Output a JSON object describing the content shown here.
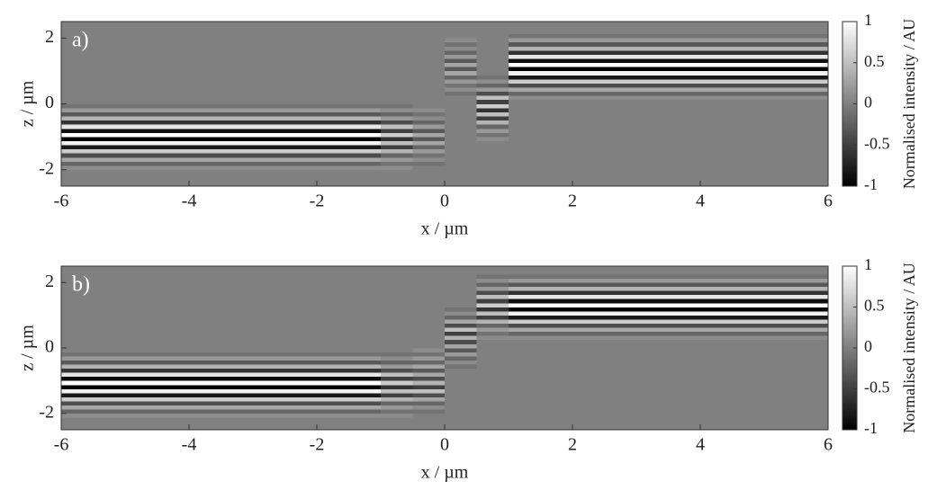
{
  "chart_data": [
    {
      "type": "heatmap",
      "panel_label": "a)",
      "xlabel": "x / µm",
      "ylabel": "z / µm",
      "colorbar_label": "Normalised intensity / AU",
      "xlim": [
        -6,
        6
      ],
      "xticks": [
        -6,
        -4,
        -2,
        0,
        2,
        4,
        6
      ],
      "ylim": [
        -2.5,
        2.5
      ],
      "yticks": [
        -2,
        0,
        2
      ],
      "clim": [
        -1,
        1
      ],
      "colorbar_ticks": [
        -1,
        -0.5,
        0,
        0.5,
        1
      ],
      "x_edges": [
        -6,
        -1,
        -0.5,
        0,
        0.5,
        1,
        6
      ],
      "z_edges": [
        -2.5,
        -2.375,
        -2.25,
        -2.125,
        -2,
        -1.875,
        -1.75,
        -1.625,
        -1.5,
        -1.375,
        -1.25,
        -1.125,
        -1,
        -0.875,
        -0.75,
        -0.625,
        -0.5,
        -0.375,
        -0.25,
        -0.125,
        0,
        0.125,
        0.25,
        0.375,
        0.5,
        0.625,
        0.75,
        0.875,
        1,
        1.125,
        1.25,
        1.375,
        1.5,
        1.625,
        1.75,
        1.875,
        2,
        2.125,
        2.25,
        2.375,
        2.5
      ],
      "values": [
        [
          0,
          0,
          0,
          0,
          0.1,
          -0.2,
          0.3,
          -0.4,
          0.6,
          -0.8,
          0.9,
          -1,
          1,
          -0.9,
          0.8,
          -0.6,
          0.4,
          -0.3,
          0.2,
          -0.1,
          0,
          0,
          0,
          0,
          0,
          0,
          0,
          0,
          0,
          0,
          0,
          0,
          0,
          0,
          0,
          0,
          0,
          0,
          0,
          0
        ],
        [
          0,
          0,
          0,
          0,
          0.1,
          -0.1,
          0.2,
          -0.2,
          0.4,
          -0.5,
          0.5,
          -0.6,
          0.6,
          -0.5,
          0.5,
          -0.4,
          0.2,
          -0.2,
          0.1,
          -0.1,
          0,
          0,
          0,
          0,
          0,
          0,
          0,
          0,
          0,
          0,
          0,
          0,
          0,
          0,
          0,
          0,
          0,
          0,
          0,
          0
        ],
        [
          0,
          0,
          0,
          0,
          0,
          -0.1,
          0.1,
          -0.1,
          0.2,
          -0.2,
          0.3,
          -0.3,
          0.3,
          -0.3,
          0.2,
          -0.2,
          0.1,
          -0.1,
          0.1,
          0,
          0,
          0,
          0,
          0,
          0,
          0,
          0,
          0,
          0,
          0,
          0,
          0,
          0,
          0,
          0,
          0,
          0,
          0,
          0,
          0
        ],
        [
          0,
          0,
          0,
          0,
          0,
          0,
          0,
          0,
          0,
          0,
          0,
          0,
          0,
          0,
          0,
          0,
          0,
          0,
          0,
          0,
          0,
          0,
          -0.1,
          0.1,
          -0.1,
          0.2,
          -0.2,
          0.3,
          -0.3,
          0.3,
          -0.3,
          0.2,
          -0.2,
          0.1,
          -0.1,
          0.1,
          0,
          0,
          0,
          0
        ],
        [
          0,
          0,
          0,
          0,
          0,
          0,
          0,
          0,
          0,
          0,
          0,
          0.1,
          -0.1,
          0.2,
          -0.2,
          0.4,
          -0.5,
          0.5,
          -0.6,
          0.6,
          -0.5,
          0.5,
          -0.4,
          0.2,
          -0.2,
          0.1,
          -0.1,
          0,
          0,
          0,
          0,
          0,
          0,
          0,
          0,
          0,
          0,
          0,
          0,
          0
        ],
        [
          0,
          0,
          0,
          0,
          0,
          0,
          0,
          0,
          0,
          0,
          0,
          0,
          0,
          0,
          0,
          0,
          0,
          0,
          0,
          0,
          0,
          0.1,
          -0.2,
          0.3,
          -0.4,
          0.6,
          -0.8,
          0.9,
          -1,
          1,
          -0.9,
          0.8,
          -0.6,
          0.4,
          -0.3,
          0.2,
          -0.1,
          0,
          0,
          0
        ]
      ]
    },
    {
      "type": "heatmap",
      "panel_label": "b)",
      "xlabel": "x / µm",
      "ylabel": "z / µm",
      "colorbar_label": "Normalised intensity / AU",
      "xlim": [
        -6,
        6
      ],
      "xticks": [
        -6,
        -4,
        -2,
        0,
        2,
        4,
        6
      ],
      "ylim": [
        -2.5,
        2.5
      ],
      "yticks": [
        -2,
        0,
        2
      ],
      "clim": [
        -1,
        1
      ],
      "colorbar_ticks": [
        -1,
        -0.5,
        0,
        0.5,
        1
      ],
      "x_edges": [
        -6,
        -1,
        -0.5,
        0,
        0.5,
        1,
        6
      ],
      "z_edges": [
        -2.5,
        -2.375,
        -2.25,
        -2.125,
        -2,
        -1.875,
        -1.75,
        -1.625,
        -1.5,
        -1.375,
        -1.25,
        -1.125,
        -1,
        -0.875,
        -0.75,
        -0.625,
        -0.5,
        -0.375,
        -0.25,
        -0.125,
        0,
        0.125,
        0.25,
        0.375,
        0.5,
        0.625,
        0.75,
        0.875,
        1,
        1.125,
        1.25,
        1.375,
        1.5,
        1.625,
        1.75,
        1.875,
        2,
        2.125,
        2.25,
        2.375,
        2.5
      ],
      "values": [
        [
          0,
          0,
          0,
          0.1,
          -0.2,
          0.3,
          -0.4,
          0.6,
          -0.8,
          0.9,
          -1,
          1,
          -0.9,
          0.8,
          -0.6,
          0.4,
          -0.3,
          0.2,
          -0.1,
          0,
          0,
          0,
          0,
          0,
          0,
          0,
          0,
          0,
          0,
          0,
          0,
          0,
          0,
          0,
          0,
          0,
          0,
          0,
          0,
          0
        ],
        [
          0,
          0,
          0,
          0.1,
          -0.1,
          0.2,
          -0.2,
          0.4,
          -0.5,
          0.5,
          -0.6,
          0.6,
          -0.5,
          0.5,
          -0.4,
          0.2,
          -0.2,
          0.1,
          -0.1,
          0,
          0,
          0,
          0,
          0,
          0,
          0,
          0,
          0,
          0,
          0,
          0,
          0,
          0,
          0,
          0,
          0,
          0,
          0,
          0,
          0
        ],
        [
          0,
          0,
          0,
          0,
          -0.1,
          0.1,
          -0.2,
          0.3,
          -0.4,
          0.5,
          -0.5,
          0.4,
          -0.4,
          0.3,
          -0.3,
          0.3,
          -0.2,
          0.2,
          -0.1,
          0.1,
          0,
          0,
          0,
          0,
          0,
          0,
          0,
          0,
          0,
          0,
          0,
          0,
          0,
          0,
          0,
          0,
          0,
          0,
          0,
          0
        ],
        [
          0,
          0,
          0,
          0,
          0,
          0,
          0,
          0,
          0,
          0,
          0,
          0,
          0,
          0,
          0,
          -0.1,
          0.1,
          -0.2,
          0.2,
          -0.3,
          0.3,
          -0.4,
          0.4,
          -0.5,
          0.5,
          -0.4,
          0.3,
          -0.2,
          0.1,
          -0.1,
          0,
          0,
          0,
          0,
          0,
          0,
          0,
          0,
          0,
          0
        ],
        [
          0,
          0,
          0,
          0,
          0,
          0,
          0,
          0,
          0,
          0,
          0,
          0,
          0,
          0,
          0,
          0,
          0,
          0,
          0,
          0,
          0,
          0,
          0.1,
          -0.1,
          0.2,
          -0.2,
          0.4,
          -0.5,
          0.5,
          -0.6,
          0.6,
          -0.5,
          0.5,
          -0.4,
          0.2,
          -0.2,
          0.1,
          -0.1,
          0,
          0
        ],
        [
          0,
          0,
          0,
          0,
          0,
          0,
          0,
          0,
          0,
          0,
          0,
          0,
          0,
          0,
          0,
          0,
          0,
          0,
          0,
          0,
          0,
          0,
          0.1,
          -0.2,
          0.3,
          -0.4,
          0.6,
          -0.8,
          0.9,
          -1,
          1,
          -0.9,
          0.8,
          -0.6,
          0.4,
          -0.3,
          0.2,
          -0.1,
          0,
          0
        ]
      ]
    }
  ]
}
